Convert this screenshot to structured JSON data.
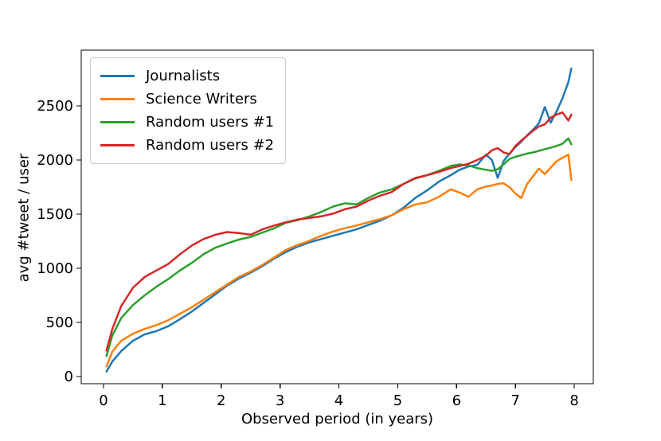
{
  "chart_data": {
    "type": "line",
    "title": "",
    "xlabel": "Observed period (in years)",
    "ylabel": "avg #tweet / user",
    "grid": false,
    "legend_position": "upper left",
    "xlim": [
      -0.379,
      8.324
    ],
    "ylim": [
      -66,
      3015
    ],
    "x_ticks": [
      0,
      1,
      2,
      3,
      4,
      5,
      6,
      7,
      8
    ],
    "y_ticks": [
      0,
      500,
      1000,
      1500,
      2000,
      2500
    ],
    "axis_color": "#000000",
    "x": [
      0.05,
      0.15,
      0.3,
      0.5,
      0.7,
      0.9,
      1.1,
      1.3,
      1.5,
      1.7,
      1.9,
      2.1,
      2.3,
      2.5,
      2.7,
      2.9,
      3.1,
      3.3,
      3.5,
      3.7,
      3.9,
      4.1,
      4.3,
      4.5,
      4.7,
      4.9,
      5.1,
      5.3,
      5.5,
      5.7,
      5.9,
      6.05,
      6.2,
      6.35,
      6.5,
      6.6,
      6.7,
      6.8,
      6.9,
      7.0,
      7.1,
      7.2,
      7.3,
      7.4,
      7.5,
      7.6,
      7.7,
      7.8,
      7.9,
      7.95
    ],
    "series": [
      {
        "name": "Journalists",
        "color": "#1f77b4",
        "values": [
          45,
          140,
          235,
          330,
          390,
          420,
          465,
          530,
          600,
          680,
          760,
          840,
          905,
          960,
          1020,
          1090,
          1150,
          1200,
          1240,
          1270,
          1300,
          1330,
          1360,
          1400,
          1440,
          1490,
          1560,
          1650,
          1720,
          1800,
          1860,
          1910,
          1940,
          1955,
          2050,
          2000,
          1835,
          1990,
          2060,
          2120,
          2170,
          2230,
          2280,
          2340,
          2490,
          2345,
          2450,
          2570,
          2720,
          2845
        ]
      },
      {
        "name": "Science Writers",
        "color": "#ff7f0e",
        "values": [
          95,
          230,
          330,
          395,
          440,
          475,
          520,
          580,
          640,
          710,
          780,
          850,
          920,
          970,
          1030,
          1100,
          1170,
          1215,
          1255,
          1300,
          1340,
          1370,
          1395,
          1425,
          1455,
          1490,
          1545,
          1590,
          1610,
          1660,
          1730,
          1700,
          1660,
          1730,
          1755,
          1765,
          1780,
          1785,
          1750,
          1690,
          1650,
          1780,
          1850,
          1920,
          1870,
          1930,
          1990,
          2020,
          2050,
          1815
        ]
      },
      {
        "name": "Random users #1",
        "color": "#2ca02c",
        "values": [
          190,
          380,
          540,
          660,
          750,
          830,
          900,
          980,
          1050,
          1130,
          1190,
          1230,
          1265,
          1290,
          1330,
          1370,
          1420,
          1445,
          1480,
          1520,
          1570,
          1600,
          1590,
          1650,
          1700,
          1730,
          1780,
          1830,
          1860,
          1900,
          1945,
          1960,
          1950,
          1925,
          1910,
          1900,
          1915,
          1960,
          2010,
          2030,
          2045,
          2060,
          2070,
          2085,
          2100,
          2115,
          2130,
          2150,
          2200,
          2145
        ]
      },
      {
        "name": "Random users #2",
        "color": "#d62728",
        "values": [
          240,
          440,
          650,
          820,
          920,
          980,
          1040,
          1130,
          1210,
          1270,
          1310,
          1335,
          1325,
          1310,
          1360,
          1395,
          1425,
          1450,
          1465,
          1480,
          1505,
          1545,
          1570,
          1625,
          1670,
          1705,
          1780,
          1835,
          1860,
          1890,
          1925,
          1945,
          1965,
          2000,
          2040,
          2090,
          2110,
          2070,
          2055,
          2130,
          2180,
          2225,
          2270,
          2310,
          2330,
          2390,
          2420,
          2440,
          2365,
          2420
        ]
      }
    ]
  }
}
